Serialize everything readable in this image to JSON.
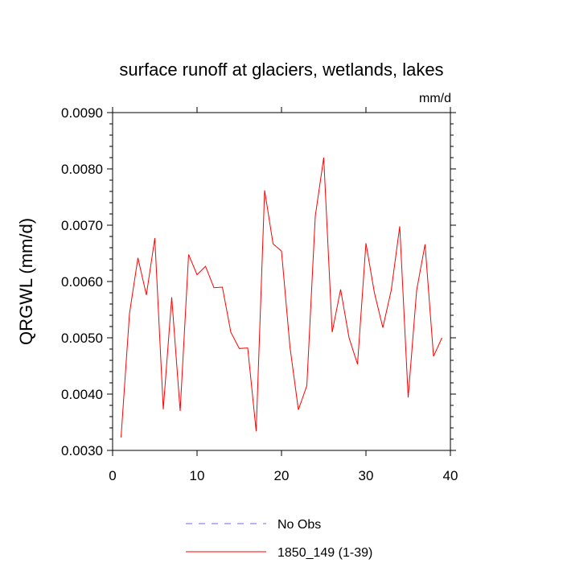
{
  "chart_data": {
    "type": "line",
    "title": "surface runoff at glaciers, wetlands, lakes",
    "units": "mm/d",
    "ylabel": "QRGWL  (mm/d)",
    "xlabel": "",
    "xlim": [
      0,
      40
    ],
    "ylim": [
      0.003,
      0.009
    ],
    "xticks": [
      0,
      10,
      20,
      30,
      40
    ],
    "yticks": [
      0.003,
      0.004,
      0.005,
      0.006,
      0.007,
      0.008,
      0.009
    ],
    "xtick_labels": [
      "0",
      "10",
      "20",
      "30",
      "40"
    ],
    "ytick_labels": [
      "0.0030",
      "0.0040",
      "0.0050",
      "0.0060",
      "0.0070",
      "0.0080",
      "0.0090"
    ],
    "grid": false,
    "legend_position": "bottom",
    "colors": {
      "obs": "#6666ff",
      "model": "#ff0000"
    },
    "series": [
      {
        "name": "No Obs",
        "style": "dashed",
        "color": "#6666ff",
        "x": [],
        "values": []
      },
      {
        "name": "1850_149 (1-39)",
        "style": "solid",
        "color": "#ff0000",
        "x": [
          1,
          2,
          3,
          4,
          5,
          6,
          7,
          8,
          9,
          10,
          11,
          12,
          13,
          14,
          15,
          16,
          17,
          18,
          19,
          20,
          21,
          22,
          23,
          24,
          25,
          26,
          27,
          28,
          29,
          30,
          31,
          32,
          33,
          34,
          35,
          36,
          37,
          38,
          39
        ],
        "values": [
          0.00323,
          0.00543,
          0.00642,
          0.00576,
          0.00677,
          0.00373,
          0.00572,
          0.0037,
          0.00648,
          0.00612,
          0.00627,
          0.00589,
          0.0059,
          0.0051,
          0.00481,
          0.00482,
          0.00334,
          0.00762,
          0.00667,
          0.00654,
          0.00484,
          0.00372,
          0.00415,
          0.00716,
          0.0082,
          0.0051,
          0.00586,
          0.005,
          0.00453,
          0.00668,
          0.0058,
          0.00518,
          0.00585,
          0.00698,
          0.00394,
          0.00584,
          0.00666,
          0.00467,
          0.005
        ]
      }
    ]
  }
}
